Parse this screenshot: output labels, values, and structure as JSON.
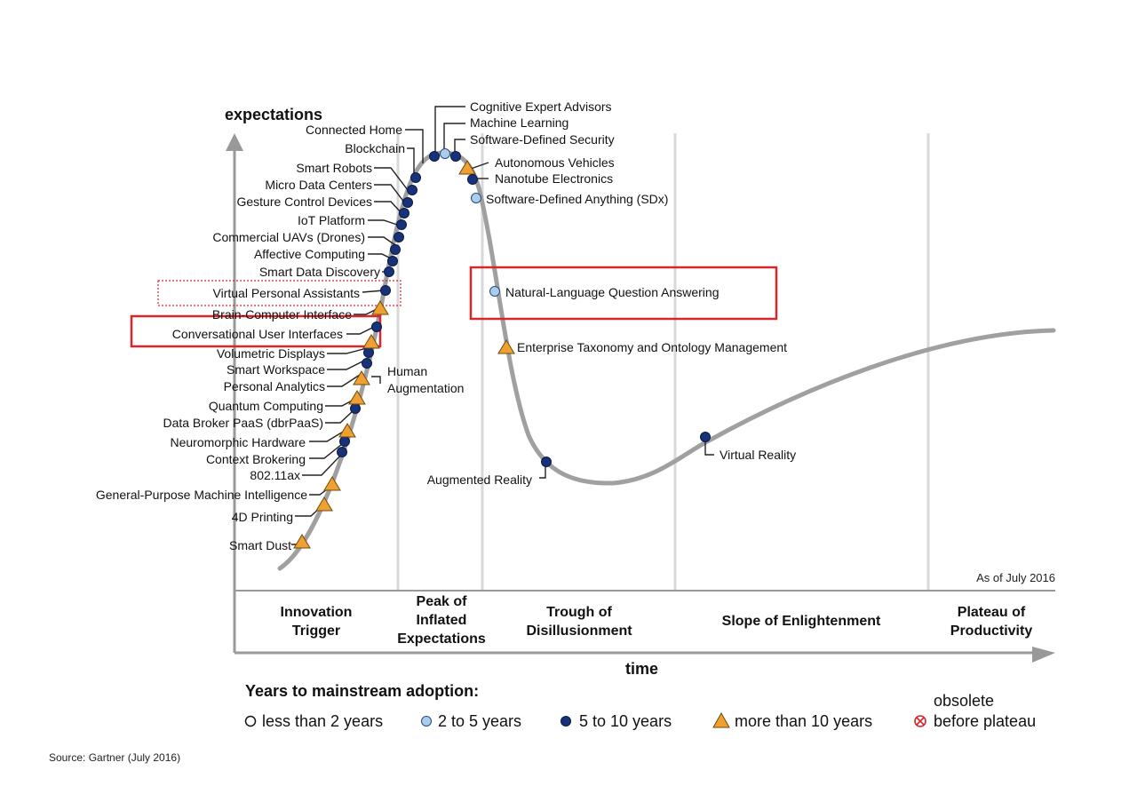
{
  "chart_data": {
    "type": "scatter",
    "ylabel": "expectations",
    "xlabel": "time",
    "as_of": "As of July 2016",
    "source": "Source: Gartner (July 2016)",
    "phases": [
      "Innovation Trigger",
      "Peak of Inflated Expectations",
      "Trough of Disillusionment",
      "Slope of Enlightenment",
      "Plateau of Productivity"
    ],
    "legend": {
      "title": "Years to mainstream adoption:",
      "items": [
        {
          "label": "less than 2 years",
          "marker": "white-circle"
        },
        {
          "label": "2 to 5 years",
          "marker": "lightblue-circle"
        },
        {
          "label": "5 to 10 years",
          "marker": "navy-circle"
        },
        {
          "label": "more than 10 years",
          "marker": "orange-triangle"
        },
        {
          "label_line1": "obsolete",
          "label_line2": "before plateau",
          "marker": "red-x-circle"
        }
      ]
    },
    "technologies": [
      {
        "name": "Smart Dust",
        "adoption": "more than 10 years",
        "phase": "Innovation Trigger"
      },
      {
        "name": "4D Printing",
        "adoption": "more than 10 years",
        "phase": "Innovation Trigger"
      },
      {
        "name": "General-Purpose Machine Intelligence",
        "adoption": "more than 10 years",
        "phase": "Innovation Trigger"
      },
      {
        "name": "802.11ax",
        "adoption": "5 to 10 years",
        "phase": "Innovation Trigger"
      },
      {
        "name": "Context Brokering",
        "adoption": "5 to 10 years",
        "phase": "Innovation Trigger"
      },
      {
        "name": "Neuromorphic Hardware",
        "adoption": "more than 10 years",
        "phase": "Innovation Trigger"
      },
      {
        "name": "Data Broker PaaS (dbrPaaS)",
        "adoption": "5 to 10 years",
        "phase": "Innovation Trigger"
      },
      {
        "name": "Quantum Computing",
        "adoption": "more than 10 years",
        "phase": "Innovation Trigger"
      },
      {
        "name": "Personal Analytics",
        "adoption": "5 to 10 years",
        "phase": "Innovation Trigger"
      },
      {
        "name": "Human Augmentation",
        "adoption": "more than 10 years",
        "phase": "Innovation Trigger"
      },
      {
        "name": "Smart Workspace",
        "adoption": "5 to 10 years",
        "phase": "Innovation Trigger"
      },
      {
        "name": "Volumetric Displays",
        "adoption": "more than 10 years",
        "phase": "Innovation Trigger"
      },
      {
        "name": "Conversational User Interfaces",
        "adoption": "5 to 10 years",
        "phase": "Innovation Trigger"
      },
      {
        "name": "Brain-Computer Interface",
        "adoption": "more than 10 years",
        "phase": "Innovation Trigger"
      },
      {
        "name": "Virtual Personal Assistants",
        "adoption": "5 to 10 years",
        "phase": "Innovation Trigger"
      },
      {
        "name": "Smart Data Discovery",
        "adoption": "5 to 10 years",
        "phase": "Innovation Trigger"
      },
      {
        "name": "Affective Computing",
        "adoption": "5 to 10 years",
        "phase": "Innovation Trigger"
      },
      {
        "name": "Commercial UAVs (Drones)",
        "adoption": "5 to 10 years",
        "phase": "Innovation Trigger"
      },
      {
        "name": "IoT Platform",
        "adoption": "5 to 10 years",
        "phase": "Innovation Trigger"
      },
      {
        "name": "Gesture Control Devices",
        "adoption": "5 to 10 years",
        "phase": "Peak of Inflated Expectations"
      },
      {
        "name": "Micro Data Centers",
        "adoption": "5 to 10 years",
        "phase": "Peak of Inflated Expectations"
      },
      {
        "name": "Smart Robots",
        "adoption": "5 to 10 years",
        "phase": "Peak of Inflated Expectations"
      },
      {
        "name": "Blockchain",
        "adoption": "5 to 10 years",
        "phase": "Peak of Inflated Expectations"
      },
      {
        "name": "Connected Home",
        "adoption": "5 to 10 years",
        "phase": "Peak of Inflated Expectations"
      },
      {
        "name": "Cognitive Expert Advisors",
        "adoption": "5 to 10 years",
        "phase": "Peak of Inflated Expectations"
      },
      {
        "name": "Machine Learning",
        "adoption": "2 to 5 years",
        "phase": "Peak of Inflated Expectations"
      },
      {
        "name": "Software-Defined Security",
        "adoption": "5 to 10 years",
        "phase": "Peak of Inflated Expectations"
      },
      {
        "name": "Autonomous Vehicles",
        "adoption": "more than 10 years",
        "phase": "Peak of Inflated Expectations"
      },
      {
        "name": "Nanotube Electronics",
        "adoption": "5 to 10 years",
        "phase": "Peak of Inflated Expectations"
      },
      {
        "name": "Software-Defined Anything (SDx)",
        "adoption": "2 to 5 years",
        "phase": "Peak of Inflated Expectations"
      },
      {
        "name": "Natural-Language Question Answering",
        "adoption": "2 to 5 years",
        "phase": "Trough of Disillusionment"
      },
      {
        "name": "Enterprise Taxonomy and Ontology Management",
        "adoption": "more than 10 years",
        "phase": "Trough of Disillusionment"
      },
      {
        "name": "Augmented Reality",
        "adoption": "5 to 10 years",
        "phase": "Trough of Disillusionment"
      },
      {
        "name": "Virtual Reality",
        "adoption": "5 to 10 years",
        "phase": "Slope of Enlightenment"
      }
    ],
    "highlighted": [
      "Conversational User Interfaces",
      "Natural-Language Question Answering",
      "Virtual Personal Assistants"
    ]
  },
  "colors": {
    "curve": "#a0a0a0",
    "lightblue": "#a9cdea",
    "navy": "#17327a",
    "orange": "#f0a030",
    "highlight": "#d8262b",
    "divider": "#d9d9d9"
  }
}
